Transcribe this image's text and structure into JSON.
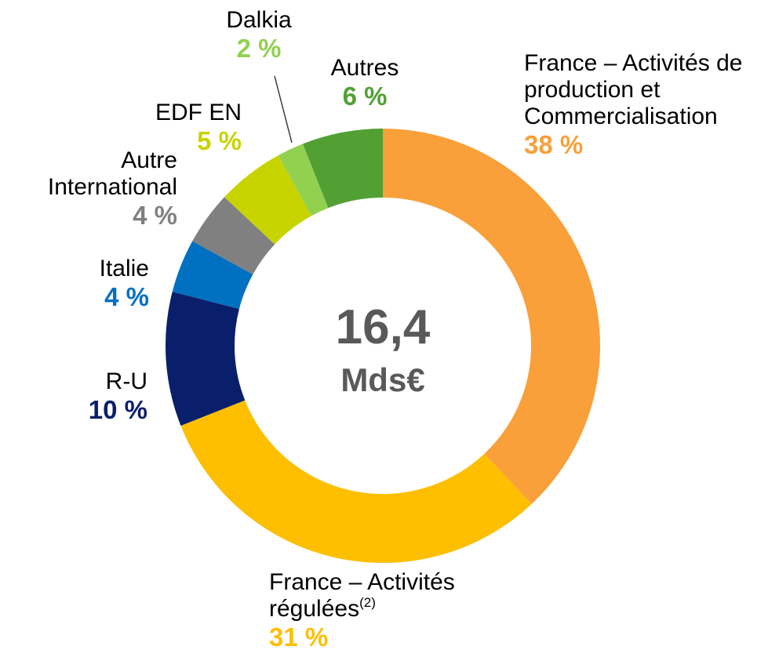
{
  "chart_data": {
    "type": "donut",
    "center_value": "16,4",
    "center_unit": "Mds€",
    "categories": [
      "France – Activités de production et Commercialisation",
      "France – Activités régulées",
      "R-U",
      "Italie",
      "Autre International",
      "EDF EN",
      "Dalkia",
      "Autres"
    ],
    "footnotes": [
      null,
      "(2)",
      null,
      null,
      null,
      null,
      null,
      null
    ],
    "values": [
      38,
      31,
      10,
      4,
      4,
      5,
      2,
      6
    ],
    "value_labels": [
      "38 %",
      "31 %",
      "10 %",
      "4 %",
      "4 %",
      "5 %",
      "2 %",
      "6 %"
    ],
    "colors": [
      "#F9A03A",
      "#FDBF00",
      "#0A1F6B",
      "#0070C0",
      "#808080",
      "#C8D400",
      "#92D050",
      "#52A033"
    ]
  }
}
